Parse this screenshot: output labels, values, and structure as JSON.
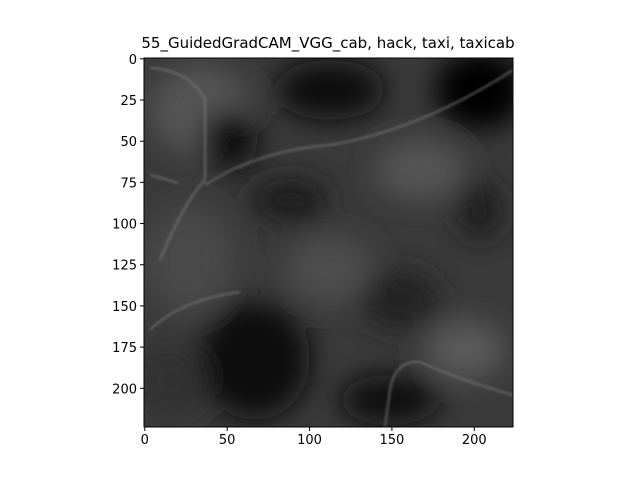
{
  "chart_data": {
    "type": "image",
    "title": "55_GuidedGradCAM_VGG_cab, hack, taxi, taxicab",
    "xlim": [
      -0.5,
      223.5
    ],
    "ylim": [
      223.5,
      -0.5
    ],
    "xticks": [
      0,
      50,
      100,
      150,
      200
    ],
    "yticks": [
      0,
      25,
      50,
      75,
      100,
      125,
      150,
      175,
      200
    ]
  }
}
